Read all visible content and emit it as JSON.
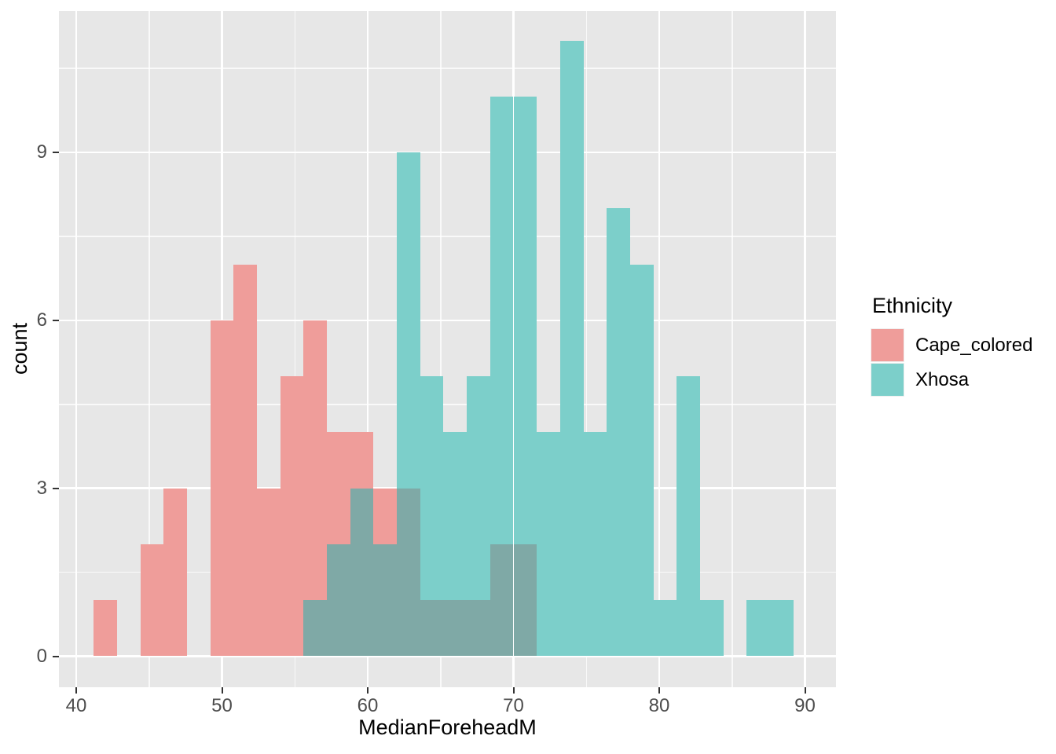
{
  "chart_data": {
    "type": "histogram",
    "title": "",
    "xlabel": "MedianForeheadM",
    "ylabel": "count",
    "legend_title": "Ethnicity",
    "legend_position": "right",
    "bin_width": 1.6,
    "bin_starts": [
      41.2,
      42.8,
      44.4,
      46.0,
      47.6,
      49.2,
      50.8,
      52.4,
      54.0,
      55.6,
      57.2,
      58.8,
      60.4,
      62.0,
      63.6,
      65.2,
      66.8,
      68.4,
      70.0,
      71.6,
      73.2,
      74.8,
      76.4,
      78.0,
      79.6,
      81.2,
      82.8,
      84.4,
      86.0,
      87.6
    ],
    "series": [
      {
        "name": "Cape_colored",
        "color": "#EF9D9A",
        "counts": [
          1,
          0,
          2,
          3,
          0,
          6,
          7,
          3,
          5,
          6,
          4,
          4,
          3,
          3,
          1,
          1,
          1,
          2,
          2,
          0,
          0,
          0,
          0,
          0,
          0,
          0,
          0,
          0,
          0,
          0
        ]
      },
      {
        "name": "Xhosa",
        "color": "#7CCFCA",
        "counts": [
          0,
          0,
          0,
          0,
          0,
          0,
          0,
          0,
          0,
          1,
          2,
          3,
          2,
          9,
          5,
          4,
          5,
          10,
          10,
          4,
          11,
          4,
          8,
          7,
          1,
          5,
          1,
          0,
          1,
          1
        ]
      }
    ],
    "overlap_color": "#7FA9A6",
    "x_ticks": [
      40,
      50,
      60,
      70,
      80,
      90
    ],
    "x_minor_ticks": [
      45,
      55,
      65,
      75,
      85
    ],
    "y_ticks": [
      0,
      3,
      6,
      9
    ],
    "y_minor_ticks": [
      1.5,
      4.5,
      7.5,
      10.5
    ],
    "xlim": [
      38.8,
      91.6
    ],
    "ylim": [
      -0.55,
      11.55
    ],
    "grid": true
  },
  "style": {
    "panel_bg": "#E7E7E7",
    "grid_color": "#FFFFFF",
    "tick_color": "#333333",
    "tick_label_color": "#4D4D4D",
    "title_color": "#000000"
  }
}
